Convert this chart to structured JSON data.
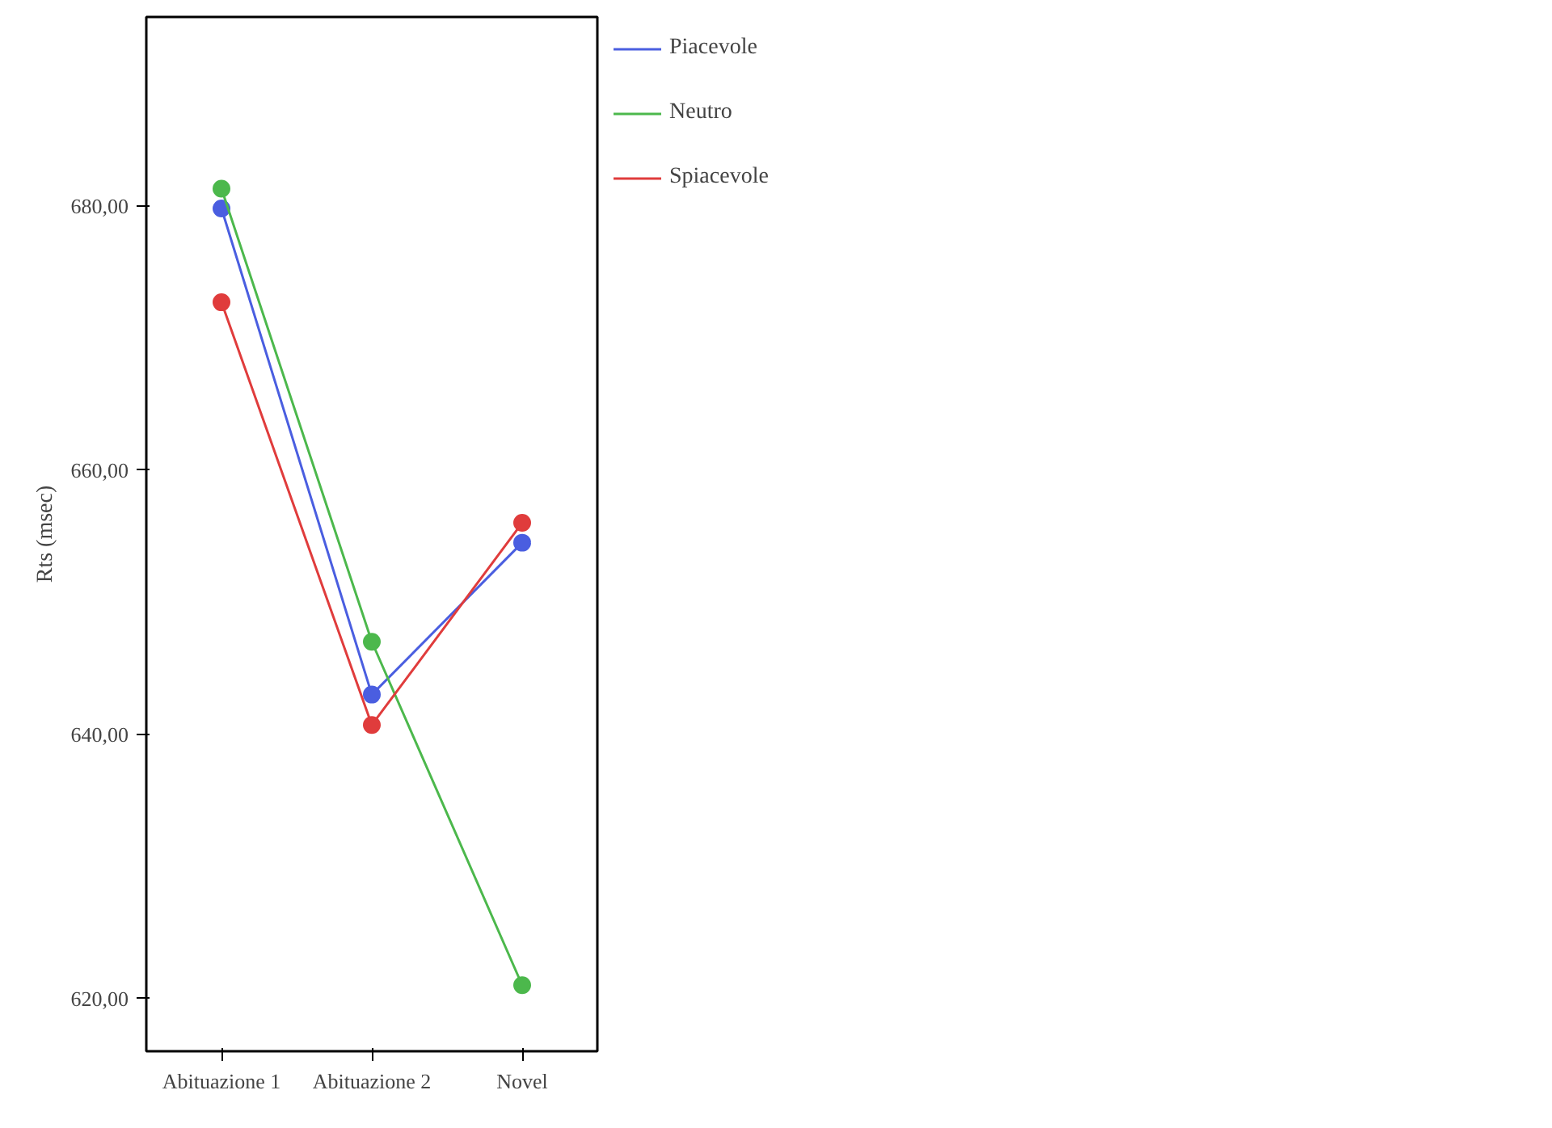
{
  "chart_data": {
    "type": "line",
    "ylabel": "Rts (msec)",
    "categories": [
      "Abituazione 1",
      "Abituazione 2",
      "Novel"
    ],
    "series": [
      {
        "name": "Piacevole",
        "color": "#4a5ee0",
        "values": [
          679.8,
          643.0,
          654.5
        ]
      },
      {
        "name": "Neutro",
        "color": "#4cb84c",
        "values": [
          681.3,
          647.0,
          621.0
        ]
      },
      {
        "name": "Spiacevole",
        "color": "#e03c3c",
        "values": [
          672.7,
          640.7,
          656.0
        ]
      }
    ],
    "ylim": [
      616,
      694.3
    ],
    "yticks": [
      {
        "value": 620,
        "label": "620,00"
      },
      {
        "value": 640,
        "label": "640,00"
      },
      {
        "value": 660,
        "label": "660,00"
      },
      {
        "value": 680,
        "label": "680,00"
      }
    ],
    "marker": "circle",
    "line_style": "solid",
    "grid": false,
    "legend": "right"
  }
}
